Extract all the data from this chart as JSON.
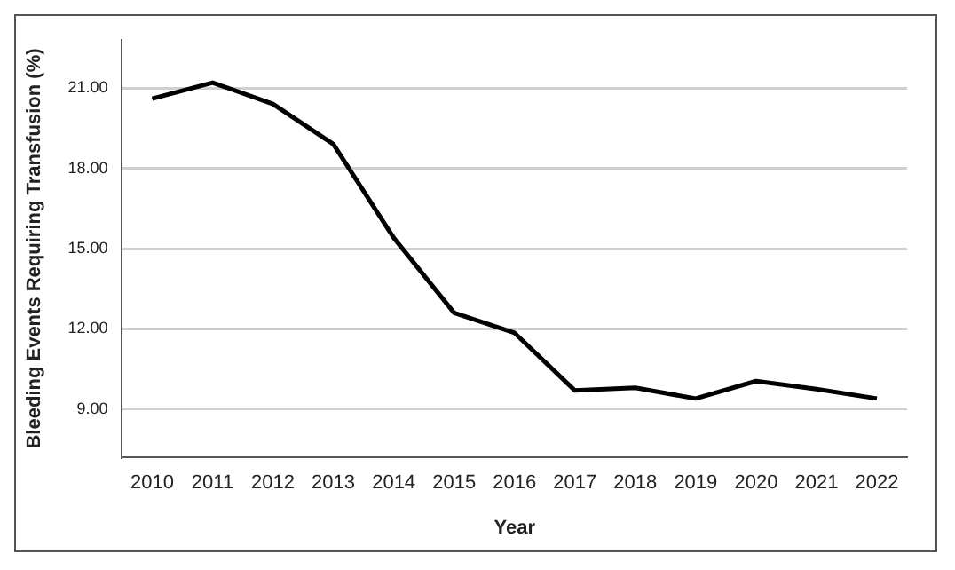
{
  "chart_data": {
    "type": "line",
    "xlabel": "Year",
    "ylabel": "Bleeding Events Requiring Transfusion (%)",
    "categories": [
      "2010",
      "2011",
      "2012",
      "2013",
      "2014",
      "2015",
      "2016",
      "2017",
      "2018",
      "2019",
      "2020",
      "2021",
      "2022"
    ],
    "series": [
      {
        "color": "#000000",
        "values": [
          20.6,
          21.2,
          20.4,
          18.9,
          15.4,
          12.6,
          11.85,
          9.7,
          9.8,
          9.4,
          10.05,
          9.75,
          9.4
        ]
      }
    ],
    "ylim": [
      7.2,
      22.8
    ],
    "yticks": [
      {
        "value": 9,
        "label": "9.00"
      },
      {
        "value": 12,
        "label": "12.00"
      },
      {
        "value": 15,
        "label": "15.00"
      },
      {
        "value": 18,
        "label": "18.00"
      },
      {
        "value": 21,
        "label": "21.00"
      }
    ],
    "grid": "y",
    "legend": false,
    "marker": "none",
    "line_style": "solid"
  }
}
